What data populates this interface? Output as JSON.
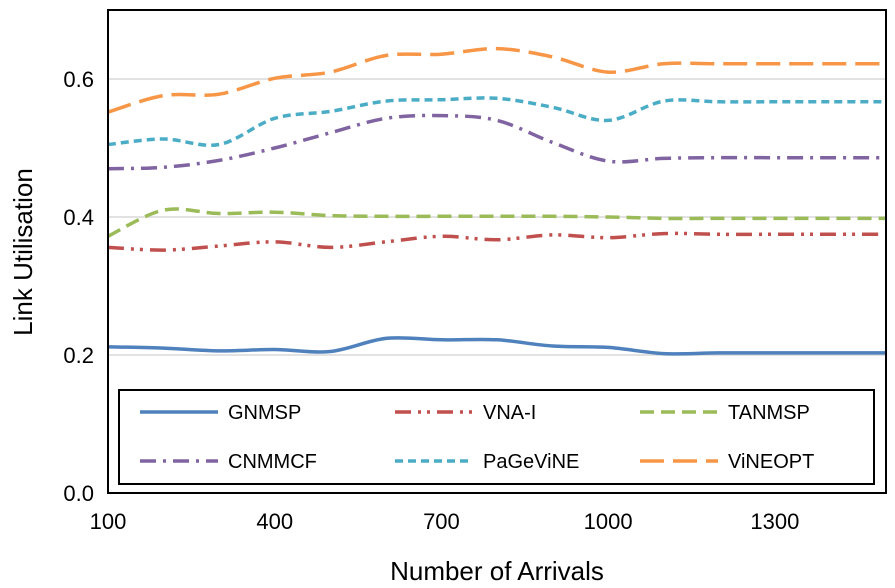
{
  "chart_data": {
    "type": "line",
    "title": "",
    "xlabel": "Number of Arrivals",
    "ylabel": "Link Utilisation",
    "xlim": [
      100,
      1500
    ],
    "ylim": [
      0.0,
      0.7
    ],
    "xticks": [
      100,
      400,
      700,
      1000,
      1300
    ],
    "xtick_labels": [
      "100",
      "400",
      "700",
      "1000",
      "1300"
    ],
    "yticks": [
      0.0,
      0.2,
      0.4,
      0.6
    ],
    "ytick_labels": [
      "0.0",
      "0.2",
      "0.4",
      "0.6"
    ],
    "grid": "horizontal",
    "legend_position": "bottom-inside",
    "x": [
      100,
      200,
      300,
      400,
      500,
      600,
      700,
      800,
      900,
      1000,
      1100,
      1200,
      1300,
      1400,
      1500
    ],
    "series": [
      {
        "name": "GNMSP",
        "color": "#4f81bd",
        "dash": "solid",
        "values": [
          0.212,
          0.21,
          0.206,
          0.208,
          0.205,
          0.224,
          0.222,
          0.222,
          0.213,
          0.211,
          0.202,
          0.203,
          0.203,
          0.203,
          0.203
        ]
      },
      {
        "name": "VNA-I",
        "color": "#c0504d",
        "dash": "dash-dot-dot",
        "values": [
          0.356,
          0.352,
          0.358,
          0.364,
          0.356,
          0.364,
          0.372,
          0.367,
          0.374,
          0.37,
          0.376,
          0.375,
          0.375,
          0.375,
          0.375
        ]
      },
      {
        "name": "TANMSP",
        "color": "#9bbb59",
        "dash": "dash",
        "values": [
          0.372,
          0.41,
          0.405,
          0.407,
          0.402,
          0.401,
          0.401,
          0.401,
          0.401,
          0.4,
          0.398,
          0.398,
          0.398,
          0.398,
          0.398
        ]
      },
      {
        "name": "CNMMCF",
        "color": "#8064a2",
        "dash": "dash-dot",
        "values": [
          0.47,
          0.472,
          0.482,
          0.5,
          0.522,
          0.543,
          0.547,
          0.54,
          0.508,
          0.481,
          0.485,
          0.486,
          0.486,
          0.486,
          0.486
        ]
      },
      {
        "name": "PaGeViNE",
        "color": "#4bacc6",
        "dash": "short-dash",
        "values": [
          0.505,
          0.513,
          0.505,
          0.543,
          0.553,
          0.568,
          0.57,
          0.572,
          0.559,
          0.54,
          0.568,
          0.567,
          0.567,
          0.567,
          0.567
        ]
      },
      {
        "name": "ViNEOPT",
        "color": "#f79646",
        "dash": "long-dash",
        "values": [
          0.552,
          0.576,
          0.578,
          0.601,
          0.61,
          0.634,
          0.636,
          0.644,
          0.632,
          0.61,
          0.622,
          0.622,
          0.622,
          0.622,
          0.622
        ]
      }
    ]
  }
}
